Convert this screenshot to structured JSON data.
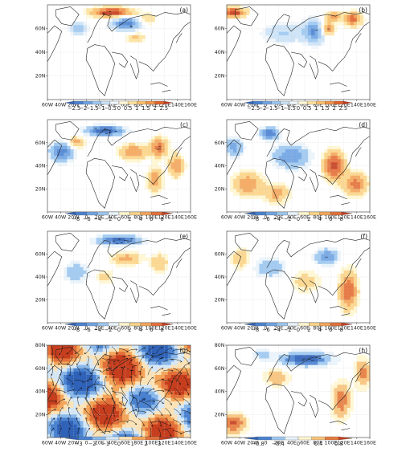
{
  "figure": {
    "panels": [
      {
        "label": "(a)",
        "colorbar": "cb1",
        "field": "a",
        "show_colorbar": true
      },
      {
        "label": "(b)",
        "colorbar": "cb1",
        "field": "b",
        "show_colorbar": true
      },
      {
        "label": "(c)",
        "colorbar": "cb2",
        "field": "c",
        "show_colorbar": true
      },
      {
        "label": "(d)",
        "colorbar": "cb2",
        "field": "d",
        "show_colorbar": true
      },
      {
        "label": "(e)",
        "colorbar": "cb2",
        "field": "e",
        "show_colorbar": true
      },
      {
        "label": "(f)",
        "colorbar": "cb2",
        "field": "f",
        "show_colorbar": true
      },
      {
        "label": "(g)",
        "colorbar": "cb3",
        "field": "g",
        "show_colorbar": true,
        "vectors": true
      },
      {
        "label": "(h)",
        "colorbar": "cb4",
        "field": "h",
        "show_colorbar": true
      }
    ],
    "lon_ticks": [
      "60W",
      "40W",
      "20W",
      "0",
      "20E",
      "40E",
      "60E",
      "80E",
      "100E",
      "120E",
      "140E",
      "160E"
    ],
    "lat_ticks_short": [
      "20N",
      "40N",
      "60N"
    ],
    "lat_ticks_long": [
      "20N",
      "40N",
      "60N",
      "80N"
    ],
    "colorbars": {
      "cb1": {
        "labels": [
          "−2.5",
          "−2",
          "−1.5",
          "−1",
          "−0.5",
          "0",
          "0.5",
          "1",
          "1.5",
          "2",
          "2.5"
        ],
        "colors": [
          "#2f62b8",
          "#4a82d0",
          "#6fa3e2",
          "#9cc6ef",
          "#cbe2f6",
          "#eef5fb",
          "#fff8d8",
          "#fde2a0",
          "#f8bf6c",
          "#ef944a",
          "#e0622c",
          "#c33a1c"
        ]
      },
      "cb2": {
        "labels": [
          "−8",
          "−6",
          "−4",
          "−2",
          "0",
          "2",
          "4",
          "6",
          "8"
        ],
        "colors": [
          "#2f62b8",
          "#4a82d0",
          "#6fa3e2",
          "#9cc6ef",
          "#e9f3fb",
          "#fff6d0",
          "#fbd488",
          "#f3a55a",
          "#e3703a",
          "#c63e1e"
        ]
      },
      "cb3": {
        "labels": [
          "−3",
          "−2",
          "−1",
          "0",
          "1",
          "2",
          "3"
        ],
        "colors": [
          "#2f62b8",
          "#4a82d0",
          "#8ab8ea",
          "#d6e8f7",
          "#fbe3b8",
          "#f3a55a",
          "#e3703a",
          "#c63e1e"
        ]
      },
      "cb4": {
        "labels": [
          "−0.8",
          "−0.4",
          "0",
          "0.4",
          "0.8"
        ],
        "colors": [
          "#2f62b8",
          "#4a82d0",
          "#9cc6ef",
          "#e9f3fb",
          "#fff6d0",
          "#f7c27a",
          "#e67b3e",
          "#c63e1e"
        ]
      }
    }
  }
}
